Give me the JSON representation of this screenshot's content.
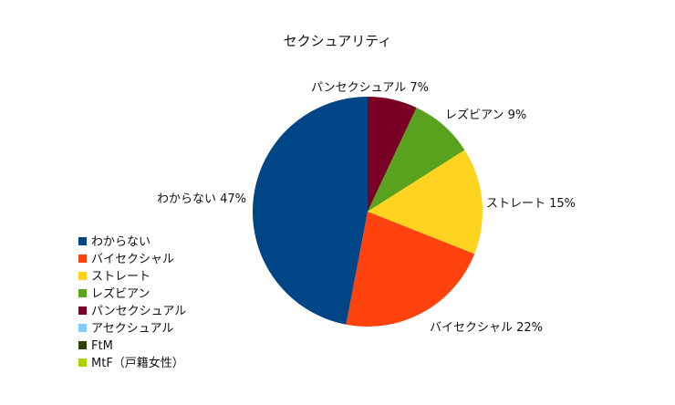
{
  "chart_data": {
    "type": "pie",
    "title": "セクシュアリティ",
    "slices": [
      {
        "label": "パンセクシュアル",
        "value": 7,
        "display": "7%",
        "color": "#7b0026"
      },
      {
        "label": "レズビアン",
        "value": 9,
        "display": "9%",
        "color": "#58a21d"
      },
      {
        "label": "ストレート",
        "value": 15,
        "display": "15%",
        "color": "#ffd320"
      },
      {
        "label": "バイセクシャル",
        "value": 22,
        "display": "22%",
        "color": "#ff420e"
      },
      {
        "label": "わからない",
        "value": 47,
        "display": "47%",
        "color": "#004586"
      }
    ],
    "legend": [
      {
        "label": "わからない",
        "color": "#004586"
      },
      {
        "label": "バイセクシャル",
        "color": "#ff420e"
      },
      {
        "label": "ストレート",
        "color": "#ffd320"
      },
      {
        "label": "レズビアン",
        "color": "#58a21d"
      },
      {
        "label": "パンセクシュアル",
        "color": "#7b0026"
      },
      {
        "label": "アセクシュアル",
        "color": "#83caff"
      },
      {
        "label": "FtM",
        "color": "#314004"
      },
      {
        "label": "MtF（戸籍女性）",
        "color": "#aecf00"
      }
    ],
    "legend_position": "bottom-left"
  }
}
